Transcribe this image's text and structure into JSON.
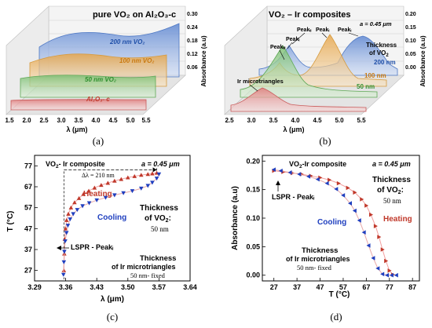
{
  "panels": {
    "a": {
      "label": "(a)"
    },
    "b": {
      "label": "(b)"
    },
    "c": {
      "label": "(c)"
    },
    "d": {
      "label": "(d)"
    }
  },
  "chart_data": [
    {
      "type": "area",
      "id": "a",
      "title": "pure VO₂ on Al₂O₃-c",
      "xlabel": "λ (μm)",
      "ylabel": "Absorbance (a.u)",
      "x_ticks": [
        "1.5",
        "2.0",
        "2.5",
        "3.0",
        "3.5",
        "4.0",
        "4.5",
        "5.0",
        "5.5"
      ],
      "y_ticks": [
        "0.06",
        "0.12",
        "0.18",
        "0.24",
        "0.30"
      ],
      "series": [
        {
          "name": "200 nm VO₂",
          "color": "#6f95d6",
          "x": [
            1.5,
            2.0,
            2.5,
            3.0,
            3.5,
            4.0,
            4.5,
            5.0,
            5.5
          ],
          "y": [
            0.27,
            0.29,
            0.28,
            0.27,
            0.26,
            0.27,
            0.28,
            0.29,
            0.29
          ]
        },
        {
          "name": "100 nm VO₂",
          "color": "#e8b360",
          "x": [
            1.5,
            2.0,
            2.5,
            3.0,
            3.5,
            4.0,
            4.5,
            5.0,
            5.5
          ],
          "y": [
            0.11,
            0.13,
            0.14,
            0.13,
            0.12,
            0.12,
            0.12,
            0.12,
            0.12
          ]
        },
        {
          "name": "50 nm VO₂",
          "color": "#86c27e",
          "x": [
            1.5,
            2.0,
            2.5,
            3.0,
            3.5,
            4.0,
            4.5,
            5.0,
            5.5
          ],
          "y": [
            0.06,
            0.06,
            0.07,
            0.06,
            0.06,
            0.06,
            0.06,
            0.06,
            0.06
          ]
        },
        {
          "name": "Al₂O₃- c",
          "color": "#e07b7b",
          "x": [
            1.5,
            2.0,
            2.5,
            3.0,
            3.5,
            4.0,
            4.5,
            5.0,
            5.5
          ],
          "y": [
            0.01,
            0.01,
            0.01,
            0.01,
            0.01,
            0.01,
            0.01,
            0.01,
            0.01
          ]
        }
      ]
    },
    {
      "type": "area",
      "id": "b",
      "title": "VO₂ – Ir composites",
      "xlabel": "λ (μm)",
      "ylabel": "Absorbance (a.u)",
      "annotation": "a = 0.45 μm",
      "legend_title": "Thickness of VO₂",
      "x_ticks": [
        "2.5",
        "3.0",
        "3.5",
        "4.0",
        "4.5",
        "5.0",
        "5.5"
      ],
      "y_ticks": [
        "0.00",
        "0.05",
        "0.10",
        "0.15",
        "0.20"
      ],
      "peak_labels": [
        "Peakᵢᵢᵢ",
        "Peakᵢ",
        "Peakᵢᵢ",
        "Peakᵢ",
        "Peakᵢ"
      ],
      "series": [
        {
          "name": "200 nm",
          "color": "#6f95d6"
        },
        {
          "name": "100 nm",
          "color": "#e8b360"
        },
        {
          "name": "50 nm",
          "color": "#86c27e"
        },
        {
          "name": "Ir microtriangles",
          "color": "#e88a8a"
        }
      ]
    },
    {
      "type": "scatter",
      "id": "c",
      "title": "VO₂- Ir composite",
      "annotation": "a = 0.45 μm",
      "xlabel": "λ (μm)",
      "ylabel": "T (°C)",
      "xlim": [
        3.29,
        3.64
      ],
      "ylim": [
        22,
        82
      ],
      "x_ticks": [
        3.29,
        3.36,
        3.43,
        3.5,
        3.57,
        3.64
      ],
      "x_tick_labels": [
        "3.29",
        "3.36",
        "3.43",
        "3.50",
        "3.57",
        "3.64"
      ],
      "y_ticks": [
        27,
        37,
        47,
        57,
        67,
        77
      ],
      "y_tick_labels": [
        "27",
        "37",
        "47",
        "57",
        "67",
        "77"
      ],
      "delta_label": "Δλ = 210 nm",
      "peak_label": "LSPR - Peakᵢ",
      "thickness_vo2": "Thickness of VO₂:",
      "thickness_vo2_value": "50 nm",
      "thickness_ir": "Thickness of Ir microtriangles",
      "thickness_ir_value": "50 nm- fixed",
      "series": [
        {
          "name": "Heating",
          "color": "#c0392b",
          "marker": "triangle-up",
          "x": [
            3.356,
            3.357,
            3.358,
            3.36,
            3.362,
            3.366,
            3.372,
            3.38,
            3.39,
            3.4,
            3.412,
            3.425,
            3.44,
            3.455,
            3.47,
            3.485,
            3.5,
            3.515,
            3.53,
            3.545,
            3.555,
            3.565
          ],
          "y": [
            27,
            35,
            42,
            47,
            51,
            54,
            57,
            59.5,
            61.5,
            63.5,
            65,
            66.5,
            67.8,
            68.8,
            69.8,
            70.6,
            71.4,
            72,
            72.6,
            73,
            73.3,
            73.6
          ]
        },
        {
          "name": "Cooling",
          "color": "#1f3fbf",
          "marker": "triangle-down",
          "x": [
            3.355,
            3.356,
            3.357,
            3.359,
            3.362,
            3.365,
            3.37,
            3.377,
            3.386,
            3.398,
            3.413,
            3.43,
            3.45,
            3.47,
            3.49,
            3.51,
            3.53,
            3.545,
            3.555,
            3.565,
            3.57
          ],
          "y": [
            25,
            31,
            36,
            41,
            45,
            48.5,
            51.5,
            54,
            56,
            57.8,
            59.2,
            60.6,
            61.8,
            63,
            64,
            65,
            66.2,
            67.5,
            69,
            71,
            73
          ]
        }
      ]
    },
    {
      "type": "scatter",
      "id": "d",
      "title": "VO₂-Ir composite",
      "annotation": "a = 0.45 μm",
      "xlabel": "T (°C)",
      "ylabel": "Absorbance (a.u)",
      "xlim": [
        22,
        90
      ],
      "ylim": [
        -0.01,
        0.21
      ],
      "x_ticks": [
        27,
        37,
        47,
        57,
        67,
        77,
        87
      ],
      "x_tick_labels": [
        "27",
        "37",
        "47",
        "57",
        "67",
        "77",
        "87"
      ],
      "y_ticks": [
        0.0,
        0.05,
        0.1,
        0.15,
        0.2
      ],
      "y_tick_labels": [
        "0.00",
        "0.05",
        "0.10",
        "0.15",
        "0.20"
      ],
      "peak_label": "LSPR - Peakᵢ",
      "thickness_vo2": "Thickness of VO₂:",
      "thickness_vo2_value": "50 nm",
      "thickness_ir": "Thickness of Ir microtriangles",
      "thickness_ir_value": "50 nm- fixed",
      "series": [
        {
          "name": "Heating",
          "color": "#c0392b",
          "marker": "triangle-right",
          "x": [
            27,
            31,
            35,
            39,
            43,
            47,
            51,
            55,
            59,
            62,
            65,
            67,
            69,
            71,
            72.5,
            74,
            75.5,
            77,
            78.5
          ],
          "y": [
            0.183,
            0.181,
            0.179,
            0.177,
            0.174,
            0.171,
            0.167,
            0.161,
            0.153,
            0.145,
            0.133,
            0.122,
            0.106,
            0.086,
            0.067,
            0.045,
            0.025,
            0.008,
            0.001
          ]
        },
        {
          "name": "Cooling",
          "color": "#1f3fbf",
          "marker": "triangle-left",
          "x": [
            80,
            78,
            76,
            74,
            72,
            70,
            68,
            66,
            64,
            62,
            60,
            57,
            54,
            50,
            46,
            42,
            38,
            34,
            30,
            27
          ],
          "y": [
            0.0,
            0.0,
            0.0,
            0.002,
            0.012,
            0.03,
            0.052,
            0.075,
            0.096,
            0.113,
            0.126,
            0.14,
            0.151,
            0.161,
            0.168,
            0.173,
            0.177,
            0.18,
            0.183,
            0.185
          ]
        }
      ]
    }
  ]
}
